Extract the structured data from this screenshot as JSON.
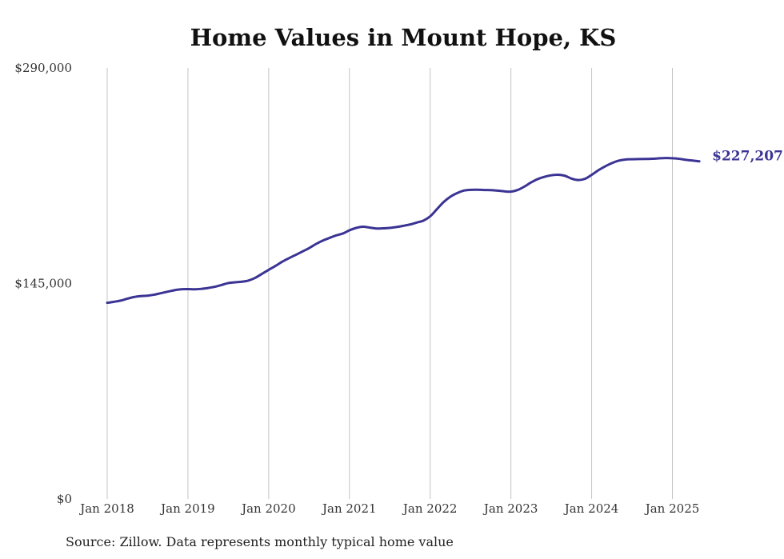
{
  "chart_data": {
    "type": "line",
    "title": "Home Values in Mount Hope, KS",
    "xlabel": "",
    "ylabel": "",
    "ylim": [
      0,
      290000
    ],
    "y_ticks": [
      {
        "value": 0,
        "label": "$0"
      },
      {
        "value": 145000,
        "label": "$145,000"
      },
      {
        "value": 290000,
        "label": "$290,000"
      }
    ],
    "x_ticks": [
      {
        "value": "2018-01",
        "label": "Jan 2018"
      },
      {
        "value": "2019-01",
        "label": "Jan 2019"
      },
      {
        "value": "2020-01",
        "label": "Jan 2020"
      },
      {
        "value": "2021-01",
        "label": "Jan 2021"
      },
      {
        "value": "2022-01",
        "label": "Jan 2022"
      },
      {
        "value": "2023-01",
        "label": "Jan 2023"
      },
      {
        "value": "2024-01",
        "label": "Jan 2024"
      },
      {
        "value": "2025-01",
        "label": "Jan 2025"
      }
    ],
    "x_grid": true,
    "y_grid": false,
    "legend": "none",
    "line_color": "#3b3494",
    "end_label": "$227,207",
    "series": [
      {
        "x": [
          "2018-01",
          "2018-02",
          "2018-03",
          "2018-04",
          "2018-05",
          "2018-06",
          "2018-07",
          "2018-08",
          "2018-09",
          "2018-10",
          "2018-11",
          "2018-12",
          "2019-01",
          "2019-02",
          "2019-03",
          "2019-04",
          "2019-05",
          "2019-06",
          "2019-07",
          "2019-08",
          "2019-09",
          "2019-10",
          "2019-11",
          "2019-12",
          "2020-01",
          "2020-02",
          "2020-03",
          "2020-04",
          "2020-05",
          "2020-06",
          "2020-07",
          "2020-08",
          "2020-09",
          "2020-10",
          "2020-11",
          "2020-12",
          "2021-01",
          "2021-02",
          "2021-03",
          "2021-04",
          "2021-05",
          "2021-06",
          "2021-07",
          "2021-08",
          "2021-09",
          "2021-10",
          "2021-11",
          "2021-12",
          "2022-01",
          "2022-02",
          "2022-03",
          "2022-04",
          "2022-05",
          "2022-06",
          "2022-07",
          "2022-08",
          "2022-09",
          "2022-10",
          "2022-11",
          "2022-12",
          "2023-01",
          "2023-02",
          "2023-03",
          "2023-04",
          "2023-05",
          "2023-06",
          "2023-07",
          "2023-08",
          "2023-09",
          "2023-10",
          "2023-11",
          "2023-12",
          "2024-01",
          "2024-02",
          "2024-03",
          "2024-04",
          "2024-05",
          "2024-06",
          "2024-07",
          "2024-08",
          "2024-09",
          "2024-10",
          "2024-11",
          "2024-12",
          "2025-01",
          "2025-02",
          "2025-03",
          "2025-04",
          "2025-05"
        ],
        "values": [
          132000,
          132700,
          133500,
          134800,
          135900,
          136500,
          136800,
          137500,
          138500,
          139500,
          140500,
          141100,
          141200,
          141100,
          141400,
          142000,
          142800,
          144000,
          145300,
          145800,
          146200,
          147000,
          148800,
          151500,
          154200,
          156800,
          159600,
          162000,
          164200,
          166500,
          168800,
          171500,
          173800,
          175600,
          177300,
          178600,
          180800,
          182400,
          183200,
          182600,
          182000,
          182100,
          182400,
          183000,
          183800,
          184700,
          186000,
          187300,
          190200,
          195000,
          199800,
          203400,
          205800,
          207500,
          208000,
          208100,
          207900,
          207800,
          207500,
          207000,
          206800,
          207900,
          210200,
          213000,
          215300,
          216800,
          217800,
          218200,
          217500,
          215600,
          214600,
          215400,
          218100,
          221200,
          223800,
          226000,
          227600,
          228400,
          228600,
          228700,
          228800,
          228900,
          229200,
          229400,
          229300,
          228900,
          228200,
          227700,
          227207
        ]
      }
    ]
  },
  "footer": {
    "source": "Source: Zillow. Data represents monthly typical home value"
  }
}
